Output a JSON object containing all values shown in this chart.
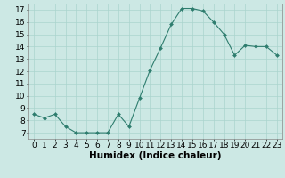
{
  "x": [
    0,
    1,
    2,
    3,
    4,
    5,
    6,
    7,
    8,
    9,
    10,
    11,
    12,
    13,
    14,
    15,
    16,
    17,
    18,
    19,
    20,
    21,
    22,
    23
  ],
  "y": [
    8.5,
    8.2,
    8.5,
    7.5,
    7.0,
    7.0,
    7.0,
    7.0,
    8.5,
    7.5,
    9.8,
    12.1,
    13.9,
    15.8,
    17.1,
    17.1,
    16.9,
    16.0,
    15.0,
    13.3,
    14.1,
    14.0,
    14.0,
    13.3
  ],
  "line_color": "#2e7d6e",
  "marker_color": "#2e7d6e",
  "bg_color": "#cce8e4",
  "grid_color": "#aad4ce",
  "xlabel": "Humidex (Indice chaleur)",
  "xlabel_fontsize": 7.5,
  "tick_fontsize": 6.5,
  "xlim": [
    -0.5,
    23.5
  ],
  "ylim": [
    6.5,
    17.5
  ],
  "yticks": [
    7,
    8,
    9,
    10,
    11,
    12,
    13,
    14,
    15,
    16,
    17
  ],
  "xticks": [
    0,
    1,
    2,
    3,
    4,
    5,
    6,
    7,
    8,
    9,
    10,
    11,
    12,
    13,
    14,
    15,
    16,
    17,
    18,
    19,
    20,
    21,
    22,
    23
  ]
}
